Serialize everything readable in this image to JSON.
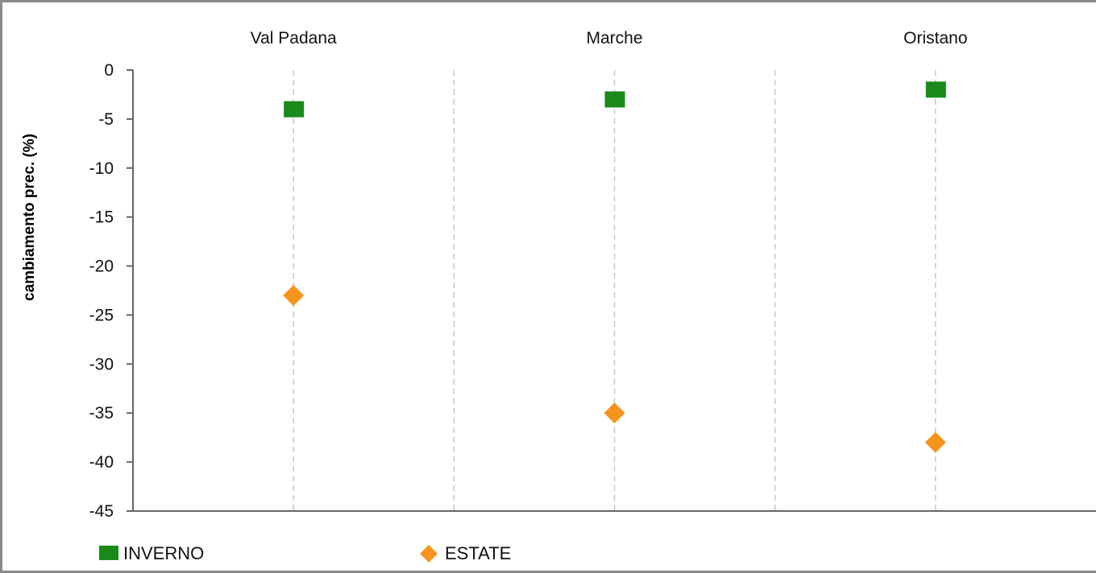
{
  "chart_data": {
    "type": "scatter",
    "categories": [
      "Val Padana",
      "Marche",
      "Oristano"
    ],
    "series": [
      {
        "name": "INVERNO",
        "marker": "square",
        "color": "#1a8a1a",
        "values": [
          -4,
          -3,
          -2
        ]
      },
      {
        "name": "ESTATE",
        "marker": "diamond",
        "color": "#f7941d",
        "values": [
          -23,
          -35,
          -38
        ]
      }
    ],
    "ylabel": "cambiamento prec. (%)",
    "ylim": [
      -45,
      0
    ],
    "yticks": [
      0,
      -5,
      -10,
      -15,
      -20,
      -25,
      -30,
      -35,
      -40,
      -45
    ],
    "category_axis_position": "top",
    "legend_position": "bottom-left",
    "grid": "dashed vertical"
  }
}
